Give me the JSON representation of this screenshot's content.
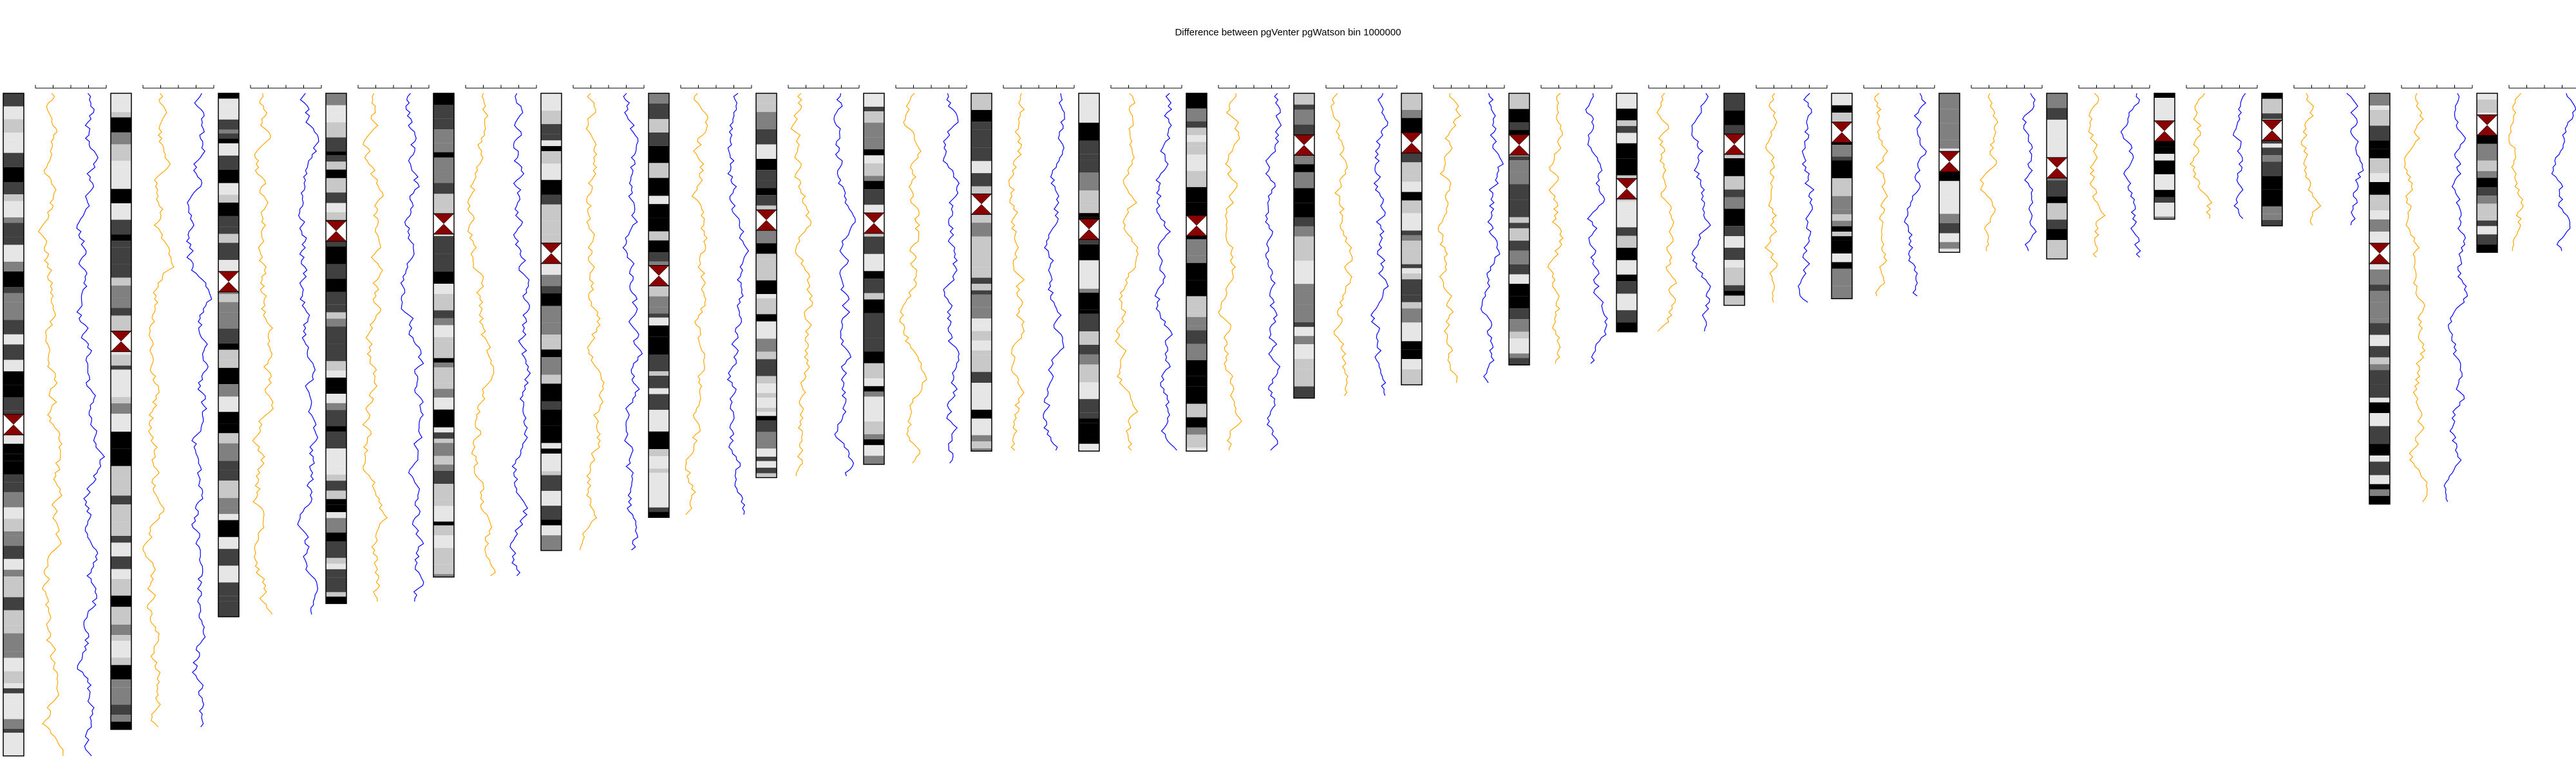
{
  "title": "Difference between pgVenter pgWatson bin 1000000",
  "colors": {
    "series_a": "#ffa500",
    "series_b": "#0000ff",
    "centromere": "#8b0000",
    "band_black": "#000000",
    "band_dark": "#404040",
    "band_mid": "#808080",
    "band_light": "#c8c8c8",
    "band_pale": "#e6e6e6",
    "outline": "#000000"
  },
  "chart_data": {
    "type": "ideogram",
    "title": "Difference between pgVenter pgWatson bin 1000000",
    "series": [
      {
        "name": "",
        "color": "#ffa500"
      },
      {
        "name": "",
        "color": "#0000ff"
      }
    ],
    "chromosome_relative_lengths": [
      1.0,
      0.96,
      0.79,
      0.77,
      0.73,
      0.69,
      0.64,
      0.58,
      0.56,
      0.54,
      0.54,
      0.54,
      0.46,
      0.44,
      0.41,
      0.36,
      0.32,
      0.31,
      0.24,
      0.25,
      0.19,
      0.2,
      0.62,
      0.24
    ],
    "centromere_relative_positions": [
      0.5,
      0.39,
      0.36,
      0.27,
      0.27,
      0.35,
      0.43,
      0.33,
      0.35,
      0.31,
      0.38,
      0.37,
      0.17,
      0.17,
      0.19,
      0.4,
      0.24,
      0.19,
      0.43,
      0.45,
      0.3,
      0.28,
      0.39,
      0.2
    ]
  }
}
